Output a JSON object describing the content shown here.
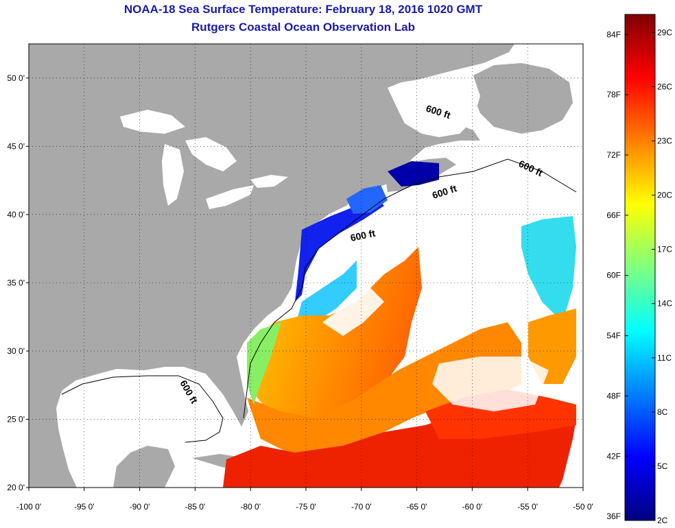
{
  "header": {
    "title": "NOAA-18 Sea Surface Temperature:  February 18, 2016 1020 GMT",
    "subtitle": "Rutgers Coastal Ocean Observation Lab"
  },
  "map": {
    "lon_range": [
      -100,
      -50
    ],
    "lat_range": [
      20,
      52.5
    ],
    "lat_ticks": [
      {
        "value": 50,
        "label": "50 0'"
      },
      {
        "value": 45,
        "label": "45 0'"
      },
      {
        "value": 40,
        "label": "40 0'"
      },
      {
        "value": 35,
        "label": "35 0'"
      },
      {
        "value": 30,
        "label": "30 0'"
      },
      {
        "value": 25,
        "label": "25 0'"
      },
      {
        "value": 20,
        "label": "20 0'"
      }
    ],
    "lon_ticks": [
      {
        "value": -100,
        "label": "-100 0'"
      },
      {
        "value": -95,
        "label": "-95 0'"
      },
      {
        "value": -90,
        "label": "-90 0'"
      },
      {
        "value": -85,
        "label": "-85 0'"
      },
      {
        "value": -80,
        "label": "-80 0'"
      },
      {
        "value": -75,
        "label": "-75 0'"
      },
      {
        "value": -70,
        "label": "-70 0'"
      },
      {
        "value": -65,
        "label": "-65 0'"
      },
      {
        "value": -60,
        "label": "-60 0'"
      },
      {
        "value": -55,
        "label": "-55 0'"
      },
      {
        "value": -50,
        "label": "-50 0'"
      }
    ],
    "contour_label": "600 ft",
    "colors": {
      "land": "#a9a9a9",
      "cloud": "#ffffff",
      "frame": "#000000"
    }
  },
  "colorbar": {
    "stops": [
      "#00007f",
      "#0000ff",
      "#007fff",
      "#00ffff",
      "#7fff7f",
      "#ffff00",
      "#ff7f00",
      "#ff0000",
      "#7f0000"
    ],
    "fahrenheit": [
      {
        "value": 84,
        "label": "84F"
      },
      {
        "value": 78,
        "label": "78F"
      },
      {
        "value": 72,
        "label": "72F"
      },
      {
        "value": 66,
        "label": "66F"
      },
      {
        "value": 60,
        "label": "60F"
      },
      {
        "value": 54,
        "label": "54F"
      },
      {
        "value": 48,
        "label": "48F"
      },
      {
        "value": 42,
        "label": "42F"
      },
      {
        "value": 36,
        "label": "36F"
      }
    ],
    "celsius": [
      {
        "value": 29,
        "label": "29C"
      },
      {
        "value": 26,
        "label": "26C"
      },
      {
        "value": 23,
        "label": "23C"
      },
      {
        "value": 20,
        "label": "20C"
      },
      {
        "value": 17,
        "label": "17C"
      },
      {
        "value": 14,
        "label": "14C"
      },
      {
        "value": 11,
        "label": "11C"
      },
      {
        "value": 8,
        "label": "8C"
      },
      {
        "value": 5,
        "label": "5C"
      },
      {
        "value": 2,
        "label": "2C"
      }
    ]
  }
}
